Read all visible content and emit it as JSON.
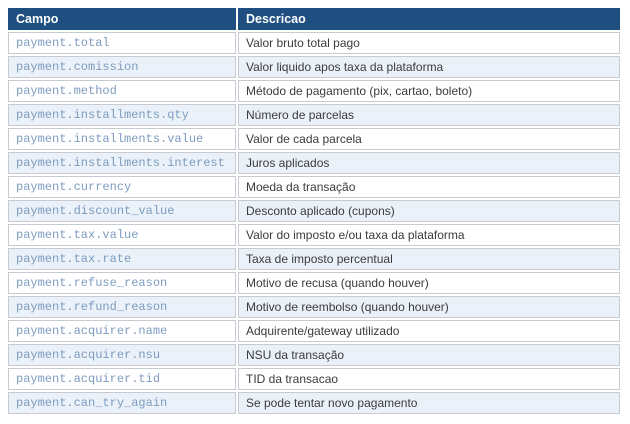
{
  "table": {
    "headers": {
      "campo": "Campo",
      "descricao": "Descricao"
    },
    "rows": [
      {
        "campo": "payment.total",
        "descricao": "Valor bruto total pago"
      },
      {
        "campo": "payment.comission",
        "descricao": "Valor liquido apos taxa da plataforma"
      },
      {
        "campo": "payment.method",
        "descricao": "Método de pagamento (pix, cartao, boleto)"
      },
      {
        "campo": "payment.installments.qty",
        "descricao": "Número de parcelas"
      },
      {
        "campo": "payment.installments.value",
        "descricao": "Valor de cada parcela"
      },
      {
        "campo": "payment.installments.interest",
        "descricao": "Juros aplicados"
      },
      {
        "campo": "payment.currency",
        "descricao": "Moeda da transação"
      },
      {
        "campo": "payment.discount_value",
        "descricao": "Desconto aplicado (cupons)"
      },
      {
        "campo": "payment.tax.value",
        "descricao": "Valor do imposto e/ou taxa da plataforma"
      },
      {
        "campo": "payment.tax.rate",
        "descricao": "Taxa de imposto percentual"
      },
      {
        "campo": "payment.refuse_reason",
        "descricao": "Motivo de recusa (quando houver)"
      },
      {
        "campo": "payment.refund_reason",
        "descricao": "Motivo de reembolso (quando houver)"
      },
      {
        "campo": "payment.acquirer.name",
        "descricao": "Adquirente/gateway utilizado"
      },
      {
        "campo": "payment.acquirer.nsu",
        "descricao": "NSU da transação"
      },
      {
        "campo": "payment.acquirer.tid",
        "descricao": "TID da transacao"
      },
      {
        "campo": "payment.can_try_again",
        "descricao": "Se pode tentar novo pagamento"
      }
    ]
  },
  "colors": {
    "header_bg": "#1E4F80",
    "header_text": "#FFFFFF",
    "row_alt_bg": "#EAF1F9",
    "row_bg": "#FFFFFF",
    "border": "#C6CBD1",
    "field_text": "#7D9CC0",
    "description_text": "#3B3B3B"
  }
}
